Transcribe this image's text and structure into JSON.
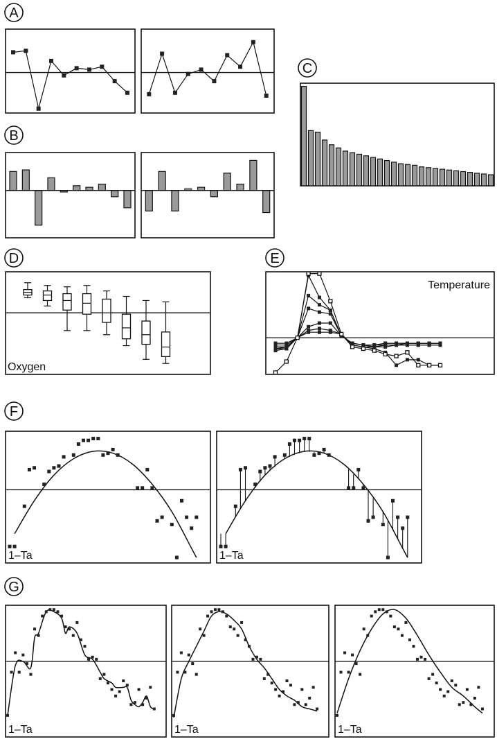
{
  "figure": {
    "title": "",
    "panel_letters": [
      "A",
      "B",
      "C",
      "D",
      "E",
      "F",
      "G"
    ]
  },
  "colors": {
    "ink": "#111111",
    "bar_fill": "#9a9a9a",
    "background": "#ffffff"
  },
  "chart_data": [
    {
      "id": "A",
      "type": "line",
      "subplots": [
        {
          "x": [
            1,
            2,
            3,
            4,
            5,
            6,
            7,
            8,
            9,
            10
          ],
          "values": [
            1.4,
            1.5,
            -2.5,
            0.8,
            -0.2,
            0.3,
            0.2,
            0.4,
            -0.6,
            -1.4
          ]
        },
        {
          "x": [
            1,
            2,
            3,
            4,
            5,
            6,
            7,
            8,
            9,
            10
          ],
          "values": [
            -1.5,
            1.3,
            -1.4,
            -0.1,
            0.2,
            -0.6,
            1.2,
            0.4,
            2.1,
            -1.6
          ]
        }
      ],
      "ylim": [
        -2.8,
        3.0
      ],
      "reference_line": 0
    },
    {
      "id": "B",
      "type": "bar",
      "subplots": [
        {
          "x": [
            1,
            2,
            3,
            4,
            5,
            6,
            7,
            8,
            9,
            10
          ],
          "values": [
            1.2,
            1.3,
            -2.2,
            0.8,
            -0.1,
            0.3,
            0.2,
            0.4,
            -0.4,
            -1.1
          ]
        },
        {
          "x": [
            1,
            2,
            3,
            4,
            5,
            6,
            7,
            8,
            9,
            10
          ],
          "values": [
            -1.3,
            1.2,
            -1.3,
            0.1,
            0.2,
            -0.4,
            1.1,
            0.4,
            1.9,
            -1.4
          ]
        }
      ],
      "ylim": [
        -3.0,
        2.4
      ],
      "reference_line": 0
    },
    {
      "id": "C",
      "type": "bar",
      "values": [
        6.3,
        3.5,
        3.4,
        2.9,
        2.6,
        2.4,
        2.2,
        2.1,
        2.0,
        1.9,
        1.8,
        1.7,
        1.6,
        1.5,
        1.4,
        1.35,
        1.3,
        1.2,
        1.15,
        1.1,
        1.05,
        1.0,
        0.95,
        0.9,
        0.85,
        0.8,
        0.75,
        0.7
      ],
      "ylim": [
        0,
        6.5
      ]
    },
    {
      "id": "D",
      "type": "box",
      "label": "Oxygen",
      "boxes": [
        {
          "whisker_low": 1.1,
          "q1": 1.3,
          "median": 1.5,
          "q3": 1.7,
          "whisker_high": 2.2
        },
        {
          "whisker_low": 0.5,
          "q1": 0.9,
          "median": 1.3,
          "q3": 1.6,
          "whisker_high": 2.0
        },
        {
          "whisker_low": -1.3,
          "q1": 0.2,
          "median": 0.9,
          "q3": 1.4,
          "whisker_high": 1.9
        },
        {
          "whisker_low": -1.3,
          "q1": -0.1,
          "median": 0.7,
          "q3": 1.4,
          "whisker_high": 2.0
        },
        {
          "whisker_low": -1.6,
          "q1": -0.7,
          "median": 0.0,
          "q3": 1.0,
          "whisker_high": 1.6
        },
        {
          "whisker_low": -2.4,
          "q1": -1.9,
          "median": -1.1,
          "q3": -0.1,
          "whisker_high": 1.2
        },
        {
          "whisker_low": -3.4,
          "q1": -2.3,
          "median": -1.6,
          "q3": -0.6,
          "whisker_high": 0.9
        },
        {
          "whisker_low": -3.7,
          "q1": -3.2,
          "median": -2.5,
          "q3": -1.4,
          "whisker_high": 0.8
        }
      ],
      "ylim": [
        -4.5,
        3.0
      ],
      "reference_line": 0
    },
    {
      "id": "E",
      "type": "line",
      "label": "Temperature",
      "x": [
        1,
        2,
        3,
        4,
        5,
        6,
        7,
        8,
        9,
        10,
        11,
        12,
        13,
        14,
        15,
        16
      ],
      "series": [
        {
          "marker": "filled",
          "values": [
            -0.3,
            -0.3,
            0,
            3.4,
            2.2,
            1.5,
            0.1,
            -0.3,
            -0.4,
            -0.5,
            -0.4,
            -0.4,
            -0.4,
            -0.4,
            -0.4,
            -0.4
          ]
        },
        {
          "marker": "filled",
          "values": [
            -0.4,
            -0.4,
            0,
            2.3,
            1.8,
            1.5,
            0.1,
            -0.3,
            -0.4,
            -0.4,
            -0.3,
            -0.3,
            -0.3,
            -0.3,
            -0.3,
            -0.3
          ]
        },
        {
          "marker": "filled",
          "values": [
            -0.5,
            -0.5,
            0,
            1.6,
            1.4,
            1.3,
            0.1,
            -0.3,
            -0.4,
            -0.4,
            -0.3,
            -0.3,
            -0.3,
            -0.3,
            -0.3,
            -0.3
          ]
        },
        {
          "marker": "filled",
          "values": [
            -0.6,
            -0.5,
            0,
            0.6,
            0.8,
            0.8,
            0.1,
            -0.3,
            -0.4,
            -0.4,
            -0.4,
            -0.4,
            -0.3,
            -0.3,
            -0.3,
            -0.3
          ]
        },
        {
          "marker": "filled",
          "values": [
            -0.6,
            -0.6,
            0,
            0.4,
            0.5,
            0.4,
            0.2,
            -0.4,
            -0.5,
            -0.5,
            -0.5,
            -0.4,
            -0.4,
            -0.4,
            -0.4,
            -0.4
          ]
        },
        {
          "marker": "filled",
          "values": [
            -0.7,
            -0.6,
            0,
            0.3,
            0.3,
            0.3,
            0.2,
            -0.4,
            -0.5,
            -0.6,
            -0.8,
            -1.5,
            -1.2,
            -1.2,
            -1.5,
            -1.5
          ]
        },
        {
          "marker": "open",
          "values": [
            -1.9,
            -1.3,
            0,
            3.5,
            3.5,
            2.0,
            0.2,
            -0.5,
            -0.6,
            -0.7,
            -0.9,
            -1.0,
            -0.8,
            -1.5,
            -1.5,
            -1.5
          ]
        }
      ],
      "ylim": [
        -2.0,
        3.6
      ],
      "reference_line": 0
    },
    {
      "id": "F",
      "type": "scatter",
      "label": "1–Ta",
      "subplots": [
        {
          "points": {
            "x": [
              0,
              1,
              3,
              4,
              5,
              7,
              8,
              9,
              10,
              11,
              13,
              14,
              15,
              16,
              17,
              18,
              19,
              20,
              21,
              22,
              26,
              27,
              28,
              29,
              30,
              31,
              33,
              34,
              35,
              36,
              37,
              38
            ],
            "y": [
              -3.1,
              -3.1,
              -0.9,
              1.1,
              1.2,
              0.3,
              1.0,
              1.2,
              1.3,
              1.8,
              1.9,
              2.5,
              2.7,
              2.7,
              2.8,
              2.8,
              1.9,
              2.0,
              2.2,
              1.9,
              0.1,
              0.1,
              1.1,
              0.1,
              -1.7,
              -1.5,
              -1.9,
              -3.7,
              -0.6,
              -1.5,
              -2.1,
              -1.5
            ]
          },
          "smooth": {
            "type": "quadratic",
            "curve_x": [
              1,
              5,
              9,
              13,
              17,
              21,
              25,
              29,
              33,
              37,
              38
            ],
            "curve_y": [
              -2.4,
              -0.6,
              0.8,
              1.7,
              2.1,
              2.0,
              1.4,
              0.3,
              -1.2,
              -3.2,
              -3.7
            ]
          },
          "residual_lines": false
        },
        {
          "points": {
            "x": [
              0,
              1,
              3,
              4,
              5,
              7,
              8,
              9,
              10,
              11,
              13,
              14,
              15,
              16,
              17,
              18,
              19,
              20,
              21,
              22,
              26,
              27,
              28,
              29,
              30,
              31,
              33,
              34,
              35,
              36,
              37,
              38
            ],
            "y": [
              -3.1,
              -3.1,
              -0.9,
              1.1,
              1.2,
              0.3,
              1.0,
              1.2,
              1.3,
              1.8,
              1.9,
              2.5,
              2.7,
              2.7,
              2.8,
              2.8,
              1.9,
              2.0,
              2.2,
              1.9,
              0.1,
              0.1,
              1.1,
              0.1,
              -1.7,
              -1.5,
              -1.9,
              -3.7,
              -0.6,
              -1.5,
              -2.1,
              -1.5
            ]
          },
          "smooth": {
            "type": "quadratic",
            "curve_x": [
              1,
              5,
              9,
              13,
              17,
              21,
              25,
              29,
              33,
              37,
              38
            ],
            "curve_y": [
              -2.4,
              -0.6,
              0.8,
              1.7,
              2.1,
              2.0,
              1.4,
              0.3,
              -1.2,
              -3.2,
              -3.7
            ]
          },
          "residual_lines": true
        }
      ],
      "xlim": [
        0,
        40
      ],
      "ylim": [
        -4.0,
        3.2
      ],
      "reference_line": 0
    },
    {
      "id": "G",
      "type": "scatter",
      "label": "1–Ta",
      "points": {
        "x": [
          0,
          1,
          2,
          3,
          4,
          5,
          6,
          7,
          8,
          9,
          10,
          11,
          12,
          13,
          14,
          15,
          16,
          17,
          18,
          19,
          20,
          21,
          22,
          23,
          24,
          25,
          26,
          27,
          28,
          29,
          30,
          31,
          32,
          33,
          34,
          35,
          36,
          37,
          38
        ],
        "y": [
          -2.5,
          -0.5,
          0.4,
          -0.5,
          0.3,
          -0.1,
          -0.6,
          1.5,
          1.2,
          2.1,
          2.3,
          2.4,
          2.4,
          2.3,
          2.1,
          1.6,
          1.5,
          1.2,
          1.8,
          1.0,
          0.7,
          0.1,
          0.2,
          0.1,
          -0.8,
          -0.6,
          -1.0,
          -1.3,
          -1.6,
          -1.4,
          -0.9,
          -1.1,
          -2.0,
          -1.9,
          -1.3,
          -2.0,
          -1.7,
          -1.2,
          -2.2
        ]
      },
      "smooths": [
        {
          "curve_x": [
            0,
            2,
            4,
            6,
            7,
            8,
            10,
            12,
            14,
            15,
            16,
            18,
            20,
            22,
            24,
            25,
            27,
            28,
            30,
            31,
            32,
            33,
            34,
            35,
            36,
            37,
            38
          ],
          "curve_y": [
            -2.5,
            -0.2,
            0.0,
            -0.3,
            1.1,
            1.3,
            2.3,
            2.3,
            2.0,
            1.3,
            1.6,
            1.3,
            0.3,
            0.1,
            -0.5,
            -0.8,
            -1.0,
            -1.2,
            -1.2,
            -1.2,
            -1.8,
            -2.0,
            -2.1,
            -1.9,
            -1.6,
            -2.1,
            -2.2
          ]
        },
        {
          "curve_x": [
            0,
            2,
            4,
            6,
            8,
            10,
            12,
            14,
            16,
            18,
            20,
            22,
            24,
            26,
            28,
            30,
            32,
            34,
            36,
            38
          ],
          "curve_y": [
            -2.6,
            -0.8,
            0.0,
            0.7,
            1.4,
            2.1,
            2.3,
            2.2,
            1.9,
            1.5,
            0.7,
            0.1,
            -0.3,
            -0.8,
            -1.3,
            -1.6,
            -1.8,
            -2.1,
            -2.2,
            -2.3
          ]
        },
        {
          "curve_x": [
            0,
            3,
            6,
            9,
            12,
            15,
            18,
            21,
            24,
            27,
            30,
            33,
            36,
            38
          ],
          "curve_y": [
            -2.4,
            -0.8,
            0.5,
            1.5,
            2.2,
            2.4,
            2.0,
            1.2,
            0.3,
            -0.5,
            -1.2,
            -1.6,
            -2.1,
            -2.4
          ]
        }
      ],
      "xlim": [
        0,
        40
      ],
      "ylim": [
        -3.5,
        2.6
      ],
      "reference_line": 0
    }
  ]
}
